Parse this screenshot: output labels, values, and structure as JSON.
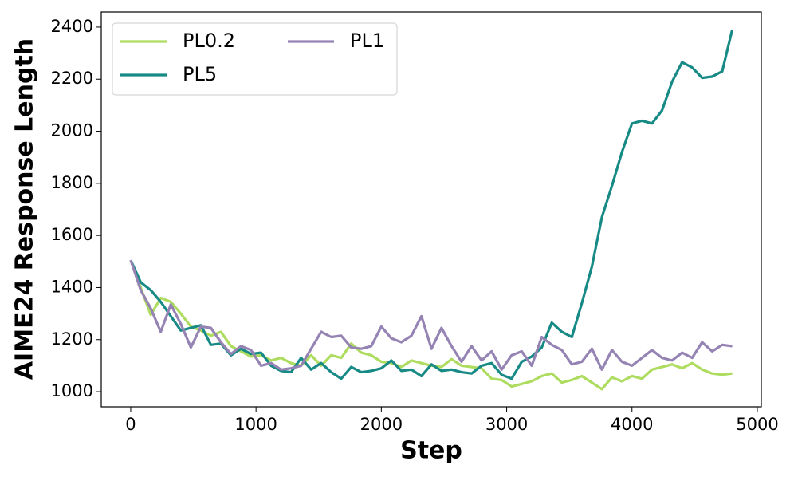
{
  "chart_data": {
    "type": "line",
    "xlabel": "Step",
    "ylabel": "AIME24 Response Length",
    "x": [
      0,
      80,
      160,
      240,
      320,
      400,
      480,
      560,
      640,
      720,
      800,
      880,
      960,
      1040,
      1120,
      1200,
      1280,
      1360,
      1440,
      1520,
      1600,
      1680,
      1760,
      1840,
      1920,
      2000,
      2080,
      2160,
      2240,
      2320,
      2400,
      2480,
      2560,
      2640,
      2720,
      2800,
      2880,
      2960,
      3040,
      3120,
      3200,
      3280,
      3360,
      3440,
      3520,
      3600,
      3680,
      3760,
      3840,
      3920,
      4000,
      4080,
      4160,
      4240,
      4320,
      4400,
      4480,
      4560,
      4640,
      4720,
      4800
    ],
    "series": [
      {
        "name": "PL0.2",
        "color": "#addc5f",
        "values": [
          1505,
          1400,
          1295,
          1360,
          1345,
          1300,
          1250,
          1235,
          1215,
          1230,
          1175,
          1155,
          1135,
          1140,
          1120,
          1130,
          1110,
          1100,
          1140,
          1100,
          1140,
          1130,
          1185,
          1150,
          1140,
          1115,
          1110,
          1095,
          1120,
          1110,
          1100,
          1095,
          1125,
          1100,
          1095,
          1090,
          1050,
          1045,
          1020,
          1030,
          1040,
          1060,
          1070,
          1035,
          1045,
          1060,
          1035,
          1010,
          1055,
          1040,
          1060,
          1050,
          1085,
          1095,
          1105,
          1090,
          1110,
          1085,
          1070,
          1065,
          1070
        ]
      },
      {
        "name": "PL5",
        "color": "#178a86",
        "values": [
          1505,
          1420,
          1390,
          1345,
          1290,
          1235,
          1245,
          1255,
          1180,
          1185,
          1140,
          1165,
          1145,
          1150,
          1100,
          1080,
          1075,
          1130,
          1085,
          1110,
          1075,
          1050,
          1095,
          1075,
          1080,
          1090,
          1120,
          1080,
          1085,
          1060,
          1105,
          1080,
          1085,
          1075,
          1070,
          1100,
          1110,
          1065,
          1050,
          1115,
          1135,
          1170,
          1265,
          1230,
          1210,
          1340,
          1480,
          1670,
          1790,
          1920,
          2030,
          2040,
          2030,
          2080,
          2190,
          2265,
          2245,
          2205,
          2210,
          2230,
          2390
        ]
      },
      {
        "name": "PL1",
        "color": "#9483b3",
        "values": [
          1505,
          1390,
          1320,
          1230,
          1335,
          1260,
          1170,
          1250,
          1245,
          1190,
          1145,
          1175,
          1160,
          1100,
          1110,
          1085,
          1090,
          1100,
          1165,
          1230,
          1210,
          1215,
          1170,
          1165,
          1175,
          1250,
          1205,
          1190,
          1215,
          1290,
          1165,
          1245,
          1175,
          1115,
          1175,
          1120,
          1155,
          1085,
          1140,
          1155,
          1100,
          1210,
          1180,
          1160,
          1105,
          1115,
          1165,
          1085,
          1160,
          1115,
          1100,
          1130,
          1160,
          1130,
          1120,
          1150,
          1130,
          1190,
          1155,
          1180,
          1175
        ]
      }
    ],
    "xlim": [
      -235,
      5032
    ],
    "ylim": [
      942,
      2458
    ],
    "xticks": [
      0,
      1000,
      2000,
      3000,
      4000,
      5000
    ],
    "yticks": [
      1000,
      1200,
      1400,
      1600,
      1800,
      2000,
      2200,
      2400
    ],
    "legend": "upper left"
  }
}
